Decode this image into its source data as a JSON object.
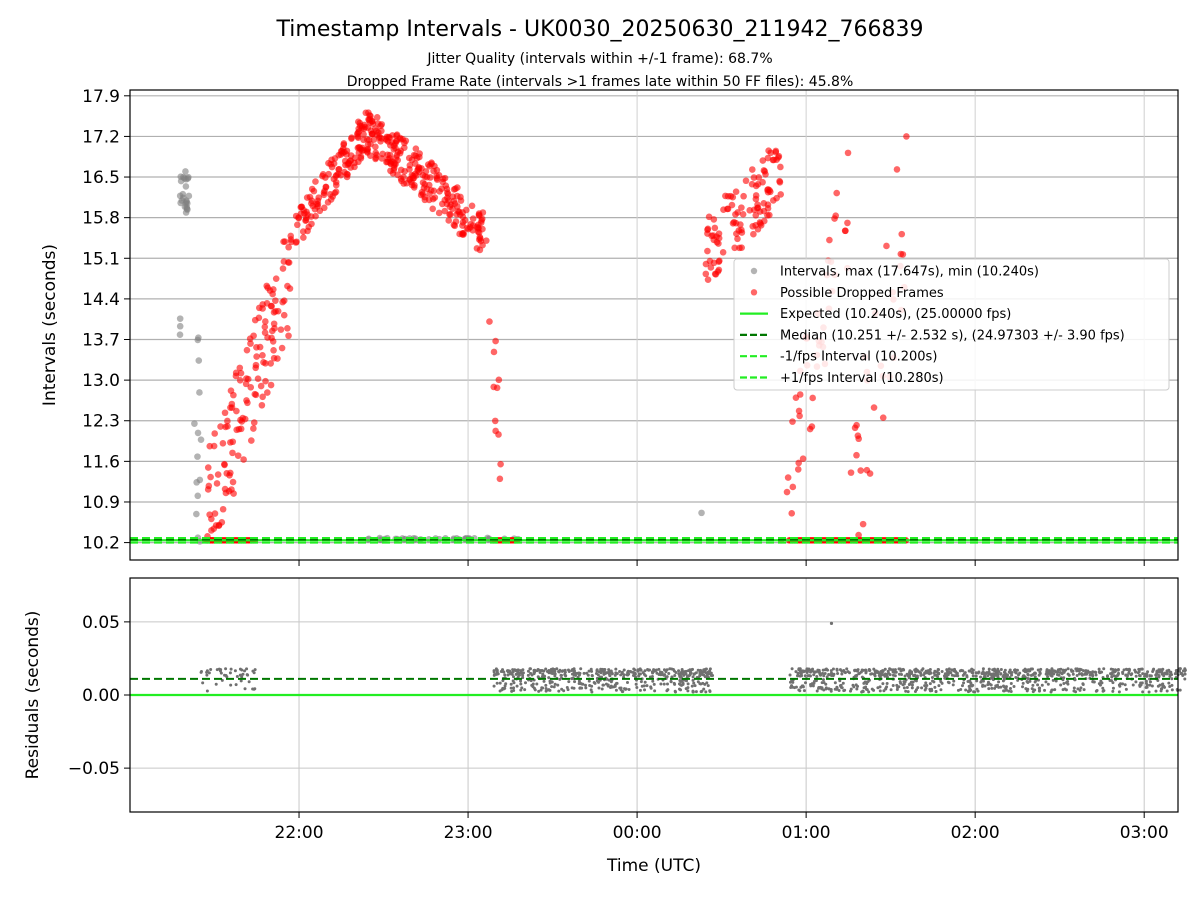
{
  "title": "Timestamp Intervals - UK0030_20250630_211942_766839",
  "subtitle_1": "Jitter Quality (intervals within +/-1 frame): 68.7%",
  "subtitle_2": "Dropped Frame Rate (intervals >1 frames late within 50 FF files): 45.8%",
  "chart_data": [
    {
      "type": "scatter",
      "panel": "top",
      "ylabel": "Intervals (seconds)",
      "xlabel": "",
      "x_range_hours": [
        21.0,
        27.2
      ],
      "ylim": [
        9.9,
        18.0
      ],
      "y_ticks": [
        10.2,
        10.9,
        11.6,
        12.3,
        13.0,
        13.7,
        14.4,
        15.1,
        15.8,
        16.5,
        17.2,
        17.9
      ],
      "y_tick_labels": [
        "10.2",
        "10.9",
        "11.6",
        "12.3",
        "13.0",
        "13.7",
        "14.4",
        "15.1",
        "15.8",
        "16.5",
        "17.2",
        "17.9"
      ],
      "grid": "y-horizontal",
      "legend_position": "center-right",
      "legend": [
        {
          "label": "Intervals, max (17.647s), min (10.240s)",
          "marker": "circle",
          "color": "#808080"
        },
        {
          "label": "Possible Dropped Frames",
          "marker": "circle",
          "color": "#ff0000"
        },
        {
          "label": "Expected (10.240s), (25.00000 fps)",
          "marker": "line-solid",
          "color": "#22ee22"
        },
        {
          "label": "Median (10.251 +/- 2.532 s), (24.97303 +/- 3.90 fps)",
          "marker": "line-dashed",
          "color": "#007700"
        },
        {
          "label": "-1/fps Interval (10.200s)",
          "marker": "line-dashed",
          "color": "#22ee22"
        },
        {
          "label": "+1/fps Interval (10.280s)",
          "marker": "line-dashed",
          "color": "#22ee22"
        }
      ],
      "reference_lines": {
        "expected": 10.24,
        "median": 10.251,
        "minus_1fps": 10.2,
        "plus_1fps": 10.28
      },
      "series": [
        {
          "name": "Intervals, max (17.647s), min (10.240s)",
          "color": "#808080",
          "clusters": [
            {
              "x_start": 21.29,
              "x_end": 21.35,
              "y_min": 15.8,
              "y_max": 16.6,
              "count": 24
            },
            {
              "x_start": 21.29,
              "x_end": 21.3,
              "y_min": 13.7,
              "y_max": 14.6,
              "count": 3
            },
            {
              "x_start": 21.38,
              "x_end": 21.43,
              "y_min": 10.2,
              "y_max": 13.9,
              "count": 14
            },
            {
              "x_start": 22.4,
              "x_end": 23.3,
              "y_min": 10.24,
              "y_max": 10.28,
              "count": 40
            },
            {
              "x_start": 24.38,
              "x_end": 24.39,
              "y_min": 10.7,
              "y_max": 10.8,
              "count": 1
            }
          ]
        },
        {
          "name": "Possible Dropped Frames",
          "color": "#ff0000",
          "segments": [
            {
              "x_start": 21.45,
              "x_end": 21.95,
              "y_start": 10.7,
              "y_end": 14.8,
              "spread": 1.0,
              "count": 140
            },
            {
              "x_start": 21.95,
              "x_end": 22.4,
              "y_start": 15.5,
              "y_end": 17.3,
              "spread": 0.35,
              "count": 130
            },
            {
              "x_start": 22.4,
              "x_end": 22.7,
              "y_start": 17.3,
              "y_end": 16.6,
              "spread": 0.4,
              "count": 120
            },
            {
              "x_start": 22.7,
              "x_end": 23.1,
              "y_start": 16.6,
              "y_end": 15.5,
              "spread": 0.4,
              "count": 120
            },
            {
              "x_start": 23.1,
              "x_end": 23.2,
              "y_start": 15.0,
              "y_end": 11.7,
              "spread": 0.8,
              "count": 12
            },
            {
              "x_start": 24.4,
              "x_end": 24.85,
              "y_start": 15.2,
              "y_end": 16.6,
              "spread": 0.6,
              "count": 110
            },
            {
              "x_start": 24.85,
              "x_end": 25.25,
              "y_start": 10.7,
              "y_end": 16.2,
              "spread": 1.2,
              "count": 45
            },
            {
              "x_start": 25.25,
              "x_end": 25.6,
              "y_start": 10.4,
              "y_end": 16.2,
              "spread": 1.5,
              "count": 35
            }
          ],
          "baseline_runs": [
            {
              "x_start": 21.45,
              "x_end": 21.75,
              "y": 10.24
            },
            {
              "x_start": 23.15,
              "x_end": 23.3,
              "y": 10.24
            },
            {
              "x_start": 24.9,
              "x_end": 25.6,
              "y": 10.24
            }
          ]
        }
      ]
    },
    {
      "type": "scatter",
      "panel": "bottom",
      "xlabel": "Time (UTC)",
      "ylabel": "Residuals (seconds)",
      "x_range_hours": [
        21.0,
        27.2
      ],
      "x_ticks": [
        22,
        23,
        24,
        25,
        26,
        27
      ],
      "x_tick_labels": [
        "22:00",
        "23:00",
        "00:00",
        "01:00",
        "02:00",
        "03:00"
      ],
      "ylim": [
        -0.08,
        0.08
      ],
      "y_ticks": [
        -0.05,
        0.0,
        0.05
      ],
      "y_tick_labels": [
        "−0.05",
        "0.00",
        "0.05"
      ],
      "grid": "both",
      "reference_lines": {
        "zero": 0.0,
        "median_offset": 0.011
      },
      "series": [
        {
          "name": "residuals",
          "color": "#707070",
          "runs": [
            {
              "x_start": 21.42,
              "x_end": 21.75,
              "y_min": 0.002,
              "y_max": 0.018,
              "count": 45
            },
            {
              "x_start": 23.15,
              "x_end": 24.45,
              "y_min": 0.002,
              "y_max": 0.018,
              "count": 520
            },
            {
              "x_start": 24.9,
              "x_end": 27.25,
              "y_min": 0.002,
              "y_max": 0.018,
              "count": 900
            }
          ],
          "outliers": [
            {
              "x": 25.15,
              "y": 0.049
            }
          ]
        }
      ]
    }
  ]
}
